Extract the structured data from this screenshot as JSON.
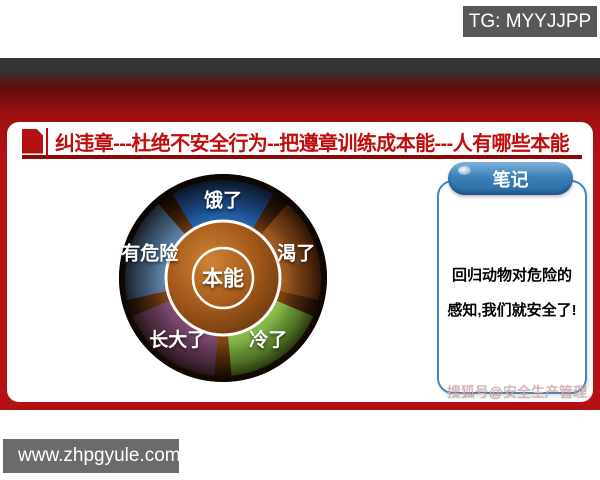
{
  "page": {
    "tg_badge": "TG: MYYJJPP",
    "footer_watermark": "www.zhpgyule.com"
  },
  "slide": {
    "title": "纠违章---杜绝不安全行为--把遵章训练成本能---人有哪些本能",
    "sohu_watermark": "搜狐号@安全生产管理",
    "notes": {
      "header": "笔记",
      "line1": "回归动物对危险的",
      "line2": "感知,我们就安全了!"
    }
  },
  "chart_data": {
    "type": "pie",
    "subtype": "donut-segment-diagram",
    "center_label": "本能",
    "segments": [
      {
        "label": "饿了",
        "angle": -90,
        "color_inner": "#2d6db8",
        "color_outer": "#0a2f63"
      },
      {
        "label": "渴了",
        "angle": -18,
        "color_inner": "#b3682a",
        "color_outer": "#5e2d0b"
      },
      {
        "label": "冷了",
        "angle": 54,
        "color_inner": "#96c857",
        "color_outer": "#578a28"
      },
      {
        "label": "长大了",
        "angle": 126,
        "color_inner": "#8a5278",
        "color_outer": "#502c46"
      },
      {
        "label": "有危险",
        "angle": 198,
        "color_inner": "#6b90b4",
        "color_outer": "#2c4a68"
      }
    ],
    "layout": {
      "inner_radius": 56,
      "outer_radius": 98,
      "sweep_deg": 62,
      "label_radius": 77,
      "legend": "none",
      "grid": false
    }
  },
  "colors": {
    "slide_red": "#b41114",
    "title_red": "#c00d0d",
    "underline_dark_red": "#8c0a0a",
    "notes_border_blue": "#4a86b8",
    "notes_pill_blue": "#3379b0",
    "tg_badge_gray": "#58585a",
    "footer_gray": "#6b6b6b",
    "center_orange": "#a55a1b"
  }
}
